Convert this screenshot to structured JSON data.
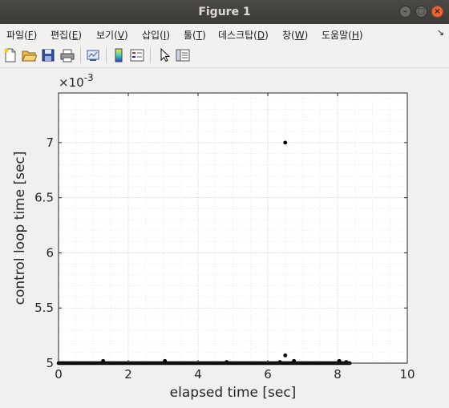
{
  "window": {
    "title": "Figure 1"
  },
  "menu": {
    "items": [
      {
        "pre": "파일(",
        "key": "F",
        "post": ")"
      },
      {
        "pre": "편집(",
        "key": "E",
        "post": ")"
      },
      {
        "pre": "보기(",
        "key": "V",
        "post": ")"
      },
      {
        "pre": "삽입(",
        "key": "I",
        "post": ")"
      },
      {
        "pre": "툴(",
        "key": "T",
        "post": ")"
      },
      {
        "pre": "데스크탑(",
        "key": "D",
        "post": ")"
      },
      {
        "pre": "창(",
        "key": "W",
        "post": ")"
      },
      {
        "pre": "도움말(",
        "key": "H",
        "post": ")"
      }
    ],
    "overflow": "↘"
  },
  "toolbar": {
    "icons": [
      "new-figure-icon",
      "open-file-icon",
      "save-icon",
      "print-icon",
      "link-plot-icon",
      "insert-colorbar-icon",
      "insert-legend-icon",
      "edit-plot-arrow-icon",
      "open-property-inspector-icon"
    ]
  },
  "colors": {
    "marker": "#000000",
    "grid": "#dcdcdc",
    "axes_bg": "#ffffff"
  },
  "chart_data": {
    "type": "scatter",
    "xlabel": "elapsed time [sec]",
    "ylabel": "control loop time [sec]",
    "exponent_label": "×10",
    "exponent_power": "-3",
    "xlim": [
      0,
      10
    ],
    "ylim": [
      0.005,
      0.00745
    ],
    "xticks": [
      0,
      2,
      4,
      6,
      8,
      10
    ],
    "xtick_labels": [
      "0",
      "2",
      "4",
      "6",
      "8",
      "10"
    ],
    "yticks": [
      0.005,
      0.0055,
      0.006,
      0.0065,
      0.007
    ],
    "ytick_labels": [
      "5",
      "5.5",
      "6",
      "6.5",
      "7"
    ],
    "grid": true,
    "minor_grid": true,
    "baseline": {
      "y": 0.005,
      "x_start": 0.0,
      "x_end": 8.35
    },
    "points": [
      {
        "x": 6.5,
        "y": 0.007
      },
      {
        "x": 6.5,
        "y": 0.00507
      },
      {
        "x": 1.28,
        "y": 0.00502
      },
      {
        "x": 3.05,
        "y": 0.00502
      },
      {
        "x": 4.82,
        "y": 0.00501
      },
      {
        "x": 6.35,
        "y": 0.00501
      },
      {
        "x": 6.75,
        "y": 0.00502
      },
      {
        "x": 8.05,
        "y": 0.00502
      },
      {
        "x": 8.25,
        "y": 0.00501
      }
    ]
  }
}
